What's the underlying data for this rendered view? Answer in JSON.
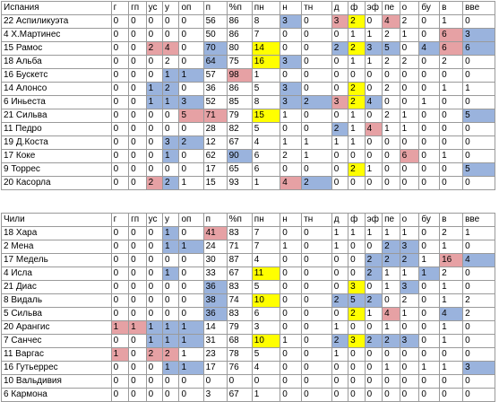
{
  "colors": {
    "pink": "#e6a1a4",
    "blue": "#9ab3dd",
    "yellow": "#ffff00"
  },
  "tables": [
    {
      "team": "Испания",
      "columns": [
        "г",
        "гп",
        "ус",
        "у",
        "оп",
        "п",
        "%п",
        "пн",
        "н",
        "тн",
        "д",
        "ф",
        "эф",
        "пе",
        "о",
        "бу",
        "в",
        "вве"
      ],
      "rows": [
        {
          "name": "22 Аспиликуэта",
          "values": [
            "0",
            "0",
            "0",
            "0",
            "0",
            "56",
            "86",
            "8",
            "3",
            "0",
            "3",
            "2",
            "0",
            "4",
            "2",
            "0",
            "1",
            "0"
          ],
          "colors": [
            "",
            "",
            "",
            "",
            "",
            "",
            "",
            "",
            "blue",
            "",
            "pink",
            "yellow",
            "",
            "pink",
            "",
            "",
            "",
            ""
          ]
        },
        {
          "name": "4 Х.Мартинес",
          "values": [
            "0",
            "0",
            "0",
            "0",
            "0",
            "50",
            "86",
            "7",
            "0",
            "0",
            "0",
            "1",
            "1",
            "2",
            "1",
            "0",
            "6",
            "3"
          ],
          "colors": [
            "",
            "",
            "",
            "",
            "",
            "",
            "",
            "",
            "",
            "",
            "",
            "",
            "",
            "",
            "",
            "",
            "pink",
            "blue"
          ]
        },
        {
          "name": "15 Рамос",
          "values": [
            "0",
            "0",
            "2",
            "4",
            "0",
            "70",
            "80",
            "14",
            "0",
            "0",
            "2",
            "2",
            "3",
            "5",
            "0",
            "4",
            "6",
            "6"
          ],
          "colors": [
            "",
            "",
            "pink",
            "pink",
            "",
            "blue",
            "",
            "yellow",
            "",
            "",
            "blue",
            "yellow",
            "blue",
            "blue",
            "",
            "blue",
            "pink",
            "blue"
          ]
        },
        {
          "name": "18 Альба",
          "values": [
            "0",
            "0",
            "0",
            "2",
            "0",
            "64",
            "75",
            "16",
            "3",
            "0",
            "0",
            "1",
            "1",
            "2",
            "2",
            "0",
            "2",
            "0"
          ],
          "colors": [
            "",
            "",
            "",
            "",
            "",
            "blue",
            "",
            "yellow",
            "blue",
            "",
            "",
            "",
            "",
            "",
            "",
            "",
            "",
            ""
          ]
        },
        {
          "name": "16 Бускетс",
          "values": [
            "0",
            "0",
            "0",
            "1",
            "1",
            "57",
            "98",
            "1",
            "0",
            "0",
            "0",
            "0",
            "0",
            "0",
            "0",
            "0",
            "0",
            "0"
          ],
          "colors": [
            "",
            "",
            "",
            "blue",
            "blue",
            "",
            "pink",
            "",
            "",
            "",
            "",
            "",
            "",
            "",
            "",
            "",
            "",
            ""
          ]
        },
        {
          "name": "14 Алонсо",
          "values": [
            "0",
            "0",
            "1",
            "2",
            "0",
            "36",
            "86",
            "5",
            "3",
            "0",
            "0",
            "2",
            "0",
            "2",
            "0",
            "0",
            "1",
            "1"
          ],
          "colors": [
            "",
            "",
            "blue",
            "blue",
            "",
            "",
            "",
            "",
            "blue",
            "",
            "",
            "yellow",
            "",
            "",
            "",
            "",
            "",
            ""
          ]
        },
        {
          "name": "6 Иньеста",
          "values": [
            "0",
            "0",
            "1",
            "1",
            "3",
            "52",
            "85",
            "8",
            "3",
            "2",
            "3",
            "2",
            "4",
            "0",
            "0",
            "1",
            "0",
            "0"
          ],
          "colors": [
            "",
            "",
            "blue",
            "blue",
            "blue",
            "",
            "",
            "",
            "blue",
            "blue",
            "pink",
            "yellow",
            "blue",
            "",
            "",
            "",
            "",
            ""
          ]
        },
        {
          "name": "21 Сильва",
          "values": [
            "0",
            "0",
            "0",
            "0",
            "5",
            "71",
            "79",
            "15",
            "1",
            "0",
            "0",
            "1",
            "0",
            "2",
            "1",
            "0",
            "0",
            "5"
          ],
          "colors": [
            "",
            "",
            "",
            "",
            "pink",
            "pink",
            "",
            "yellow",
            "",
            "",
            "",
            "",
            "",
            "",
            "",
            "",
            "",
            "blue"
          ]
        },
        {
          "name": "11 Педро",
          "values": [
            "0",
            "0",
            "0",
            "0",
            "0",
            "28",
            "82",
            "5",
            "0",
            "0",
            "2",
            "1",
            "4",
            "1",
            "1",
            "0",
            "0",
            "0"
          ],
          "colors": [
            "",
            "",
            "",
            "",
            "",
            "",
            "",
            "",
            "",
            "",
            "blue",
            "",
            "pink",
            "",
            "",
            "",
            "",
            ""
          ]
        },
        {
          "name": "19 Д.Коста",
          "values": [
            "0",
            "0",
            "0",
            "3",
            "2",
            "12",
            "67",
            "4",
            "1",
            "1",
            "1",
            "1",
            "0",
            "0",
            "0",
            "0",
            "0",
            "0"
          ],
          "colors": [
            "",
            "",
            "",
            "blue",
            "blue",
            "",
            "",
            "",
            "",
            "",
            "",
            "",
            "",
            "",
            "",
            "",
            "",
            ""
          ]
        },
        {
          "name": "17 Коке",
          "values": [
            "0",
            "0",
            "0",
            "1",
            "0",
            "62",
            "90",
            "6",
            "2",
            "1",
            "0",
            "0",
            "0",
            "0",
            "6",
            "0",
            "1",
            "0"
          ],
          "colors": [
            "",
            "",
            "",
            "blue",
            "",
            "",
            "blue",
            "",
            "",
            "",
            "",
            "",
            "",
            "",
            "pink",
            "",
            "",
            ""
          ]
        },
        {
          "name": "9 Торрес",
          "values": [
            "0",
            "0",
            "0",
            "0",
            "0",
            "17",
            "65",
            "6",
            "0",
            "0",
            "0",
            "2",
            "1",
            "0",
            "0",
            "0",
            "0",
            "5"
          ],
          "colors": [
            "",
            "",
            "",
            "",
            "",
            "",
            "",
            "",
            "",
            "",
            "",
            "yellow",
            "",
            "",
            "",
            "",
            "",
            "blue"
          ]
        },
        {
          "name": "20 Касорла",
          "values": [
            "0",
            "0",
            "2",
            "2",
            "1",
            "15",
            "93",
            "1",
            "4",
            "2",
            "0",
            "0",
            "0",
            "0",
            "0",
            "0",
            "0",
            "0"
          ],
          "colors": [
            "",
            "",
            "pink",
            "blue",
            "",
            "",
            "",
            "",
            "pink",
            "blue",
            "",
            "",
            "",
            "",
            "",
            "",
            "",
            ""
          ]
        }
      ]
    },
    {
      "team": "Чили",
      "columns": [
        "г",
        "гп",
        "ус",
        "у",
        "оп",
        "п",
        "%п",
        "пн",
        "н",
        "тн",
        "д",
        "ф",
        "эф",
        "пе",
        "о",
        "бу",
        "в",
        "вве"
      ],
      "rows": [
        {
          "name": "18 Хара",
          "values": [
            "0",
            "0",
            "0",
            "1",
            "0",
            "41",
            "83",
            "7",
            "0",
            "0",
            "1",
            "1",
            "1",
            "1",
            "1",
            "0",
            "2",
            "1"
          ],
          "colors": [
            "",
            "",
            "",
            "blue",
            "",
            "pink",
            "",
            "",
            "",
            "",
            "",
            "",
            "",
            "",
            "",
            "",
            "",
            ""
          ]
        },
        {
          "name": "2 Мена",
          "values": [
            "0",
            "0",
            "0",
            "1",
            "1",
            "24",
            "71",
            "7",
            "1",
            "0",
            "1",
            "0",
            "0",
            "2",
            "3",
            "0",
            "1",
            "0"
          ],
          "colors": [
            "",
            "",
            "",
            "blue",
            "blue",
            "",
            "",
            "",
            "",
            "",
            "",
            "",
            "",
            "blue",
            "blue",
            "",
            "",
            ""
          ]
        },
        {
          "name": "17 Медель",
          "values": [
            "0",
            "0",
            "0",
            "0",
            "0",
            "30",
            "87",
            "4",
            "0",
            "0",
            "0",
            "0",
            "2",
            "2",
            "2",
            "1",
            "16",
            "4"
          ],
          "colors": [
            "",
            "",
            "",
            "",
            "",
            "",
            "",
            "",
            "",
            "",
            "",
            "",
            "blue",
            "blue",
            "blue",
            "",
            "pink",
            "blue"
          ]
        },
        {
          "name": "4 Исла",
          "values": [
            "0",
            "0",
            "0",
            "1",
            "0",
            "33",
            "67",
            "11",
            "0",
            "0",
            "0",
            "0",
            "2",
            "1",
            "1",
            "1",
            "2",
            "0"
          ],
          "colors": [
            "",
            "",
            "",
            "blue",
            "",
            "",
            "",
            "yellow",
            "",
            "",
            "",
            "",
            "blue",
            "",
            "",
            "blue",
            "",
            ""
          ]
        },
        {
          "name": "21 Диас",
          "values": [
            "0",
            "0",
            "0",
            "0",
            "0",
            "36",
            "83",
            "5",
            "0",
            "0",
            "0",
            "3",
            "0",
            "1",
            "3",
            "0",
            "1",
            "0"
          ],
          "colors": [
            "",
            "",
            "",
            "",
            "",
            "blue",
            "",
            "",
            "",
            "",
            "",
            "yellow",
            "",
            "",
            "blue",
            "",
            "",
            ""
          ]
        },
        {
          "name": "8 Видаль",
          "values": [
            "0",
            "0",
            "0",
            "0",
            "0",
            "38",
            "74",
            "10",
            "0",
            "0",
            "2",
            "5",
            "2",
            "0",
            "2",
            "0",
            "1",
            "2"
          ],
          "colors": [
            "",
            "",
            "",
            "",
            "",
            "blue",
            "",
            "yellow",
            "",
            "",
            "blue",
            "blue",
            "blue",
            "",
            "",
            "",
            "",
            ""
          ]
        },
        {
          "name": "5 Сильва",
          "values": [
            "0",
            "0",
            "0",
            "0",
            "0",
            "36",
            "83",
            "6",
            "0",
            "0",
            "0",
            "2",
            "1",
            "4",
            "1",
            "0",
            "4",
            "2"
          ],
          "colors": [
            "",
            "",
            "",
            "",
            "",
            "blue",
            "",
            "",
            "",
            "",
            "",
            "yellow",
            "",
            "pink",
            "",
            "",
            "blue",
            ""
          ]
        },
        {
          "name": "20 Арангис",
          "values": [
            "1",
            "1",
            "1",
            "1",
            "1",
            "14",
            "79",
            "3",
            "0",
            "0",
            "1",
            "0",
            "0",
            "1",
            "0",
            "0",
            "1",
            "0"
          ],
          "colors": [
            "pink",
            "pink",
            "blue",
            "blue",
            "blue",
            "",
            "",
            "",
            "",
            "",
            "",
            "",
            "",
            "",
            "",
            "",
            "",
            ""
          ]
        },
        {
          "name": "7 Санчес",
          "values": [
            "0",
            "0",
            "1",
            "1",
            "1",
            "31",
            "68",
            "10",
            "1",
            "0",
            "2",
            "3",
            "2",
            "2",
            "3",
            "0",
            "1",
            "0"
          ],
          "colors": [
            "",
            "",
            "blue",
            "blue",
            "blue",
            "",
            "",
            "yellow",
            "",
            "",
            "blue",
            "yellow",
            "blue",
            "blue",
            "blue",
            "",
            "",
            ""
          ]
        },
        {
          "name": "11 Варгас",
          "values": [
            "1",
            "0",
            "2",
            "2",
            "1",
            "23",
            "78",
            "5",
            "0",
            "0",
            "1",
            "0",
            "0",
            "0",
            "0",
            "0",
            "0",
            "0"
          ],
          "colors": [
            "pink",
            "",
            "pink",
            "pink",
            "",
            "",
            "",
            "",
            "",
            "",
            "",
            "",
            "",
            "",
            "",
            "",
            "",
            ""
          ]
        },
        {
          "name": "16 Гутьеррес",
          "values": [
            "0",
            "0",
            "0",
            "1",
            "1",
            "17",
            "76",
            "4",
            "0",
            "0",
            "0",
            "0",
            "0",
            "1",
            "0",
            "1",
            "1",
            "3"
          ],
          "colors": [
            "",
            "",
            "",
            "blue",
            "blue",
            "",
            "",
            "",
            "",
            "",
            "",
            "",
            "",
            "",
            "",
            "",
            "",
            "blue"
          ]
        },
        {
          "name": "10 Вальдивия",
          "values": [
            "0",
            "0",
            "0",
            "0",
            "0",
            "0",
            "0",
            "0",
            "0",
            "0",
            "0",
            "0",
            "0",
            "0",
            "0",
            "0",
            "0",
            "0"
          ],
          "colors": [
            "",
            "",
            "",
            "",
            "",
            "",
            "",
            "",
            "",
            "",
            "",
            "",
            "",
            "",
            "",
            "",
            "",
            ""
          ]
        },
        {
          "name": "6 Кармона",
          "values": [
            "0",
            "0",
            "0",
            "0",
            "0",
            "3",
            "67",
            "1",
            "0",
            "0",
            "0",
            "0",
            "0",
            "0",
            "0",
            "0",
            "0",
            "0"
          ],
          "colors": [
            "",
            "",
            "",
            "",
            "",
            "",
            "",
            "",
            "",
            "",
            "",
            "",
            "",
            "",
            "",
            "",
            "",
            ""
          ]
        }
      ]
    }
  ]
}
